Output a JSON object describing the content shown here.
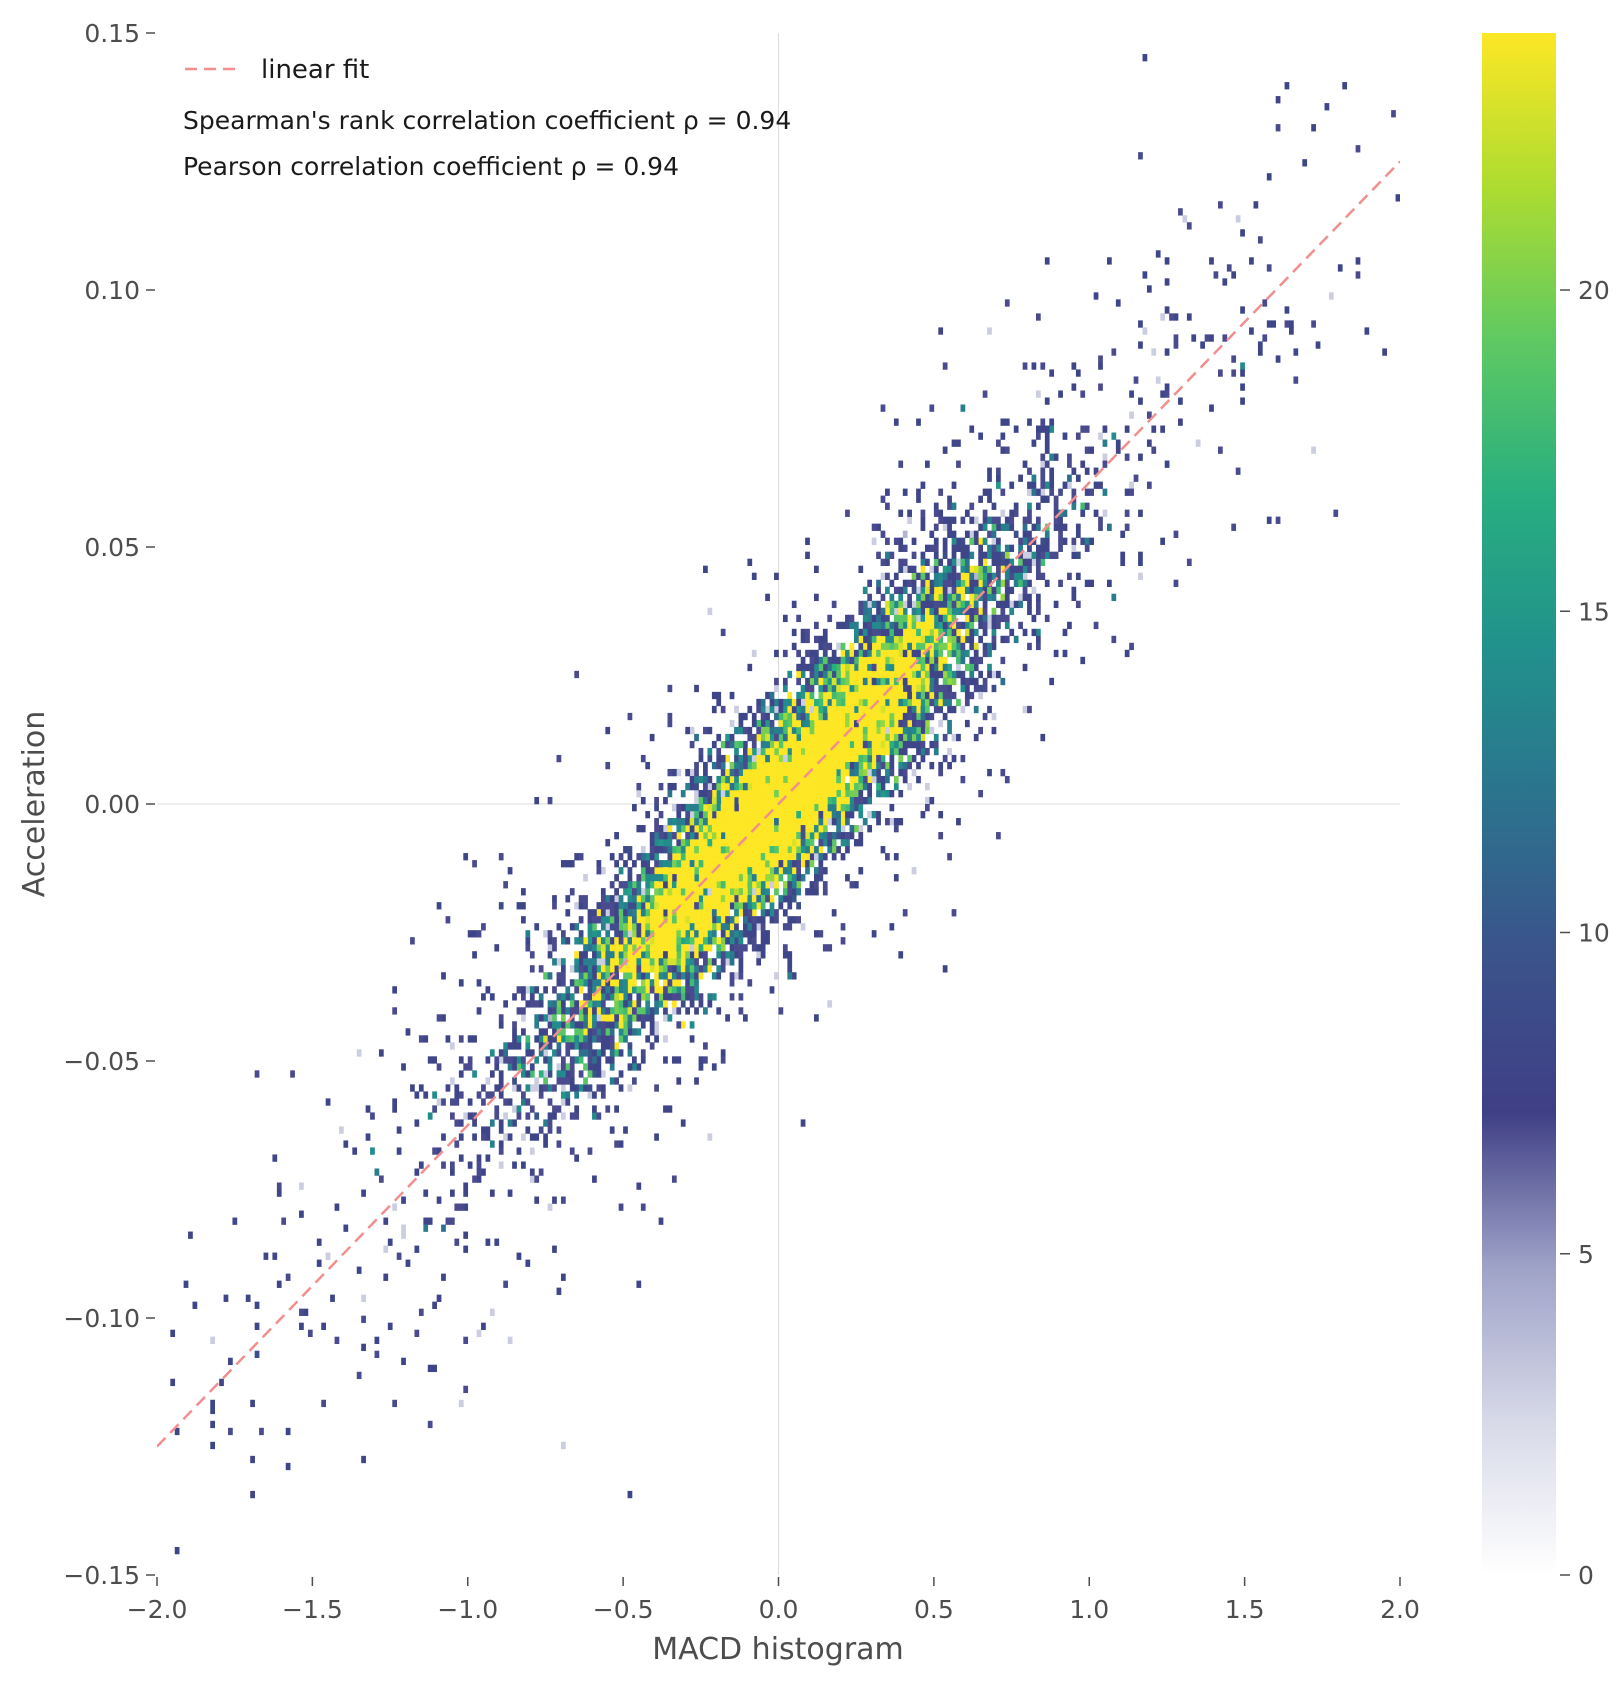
{
  "chart_data": {
    "type": "heatmap",
    "subtype": "2d-histogram scatter with linear fit",
    "xlabel": "MACD histogram",
    "ylabel": "Acceleration",
    "xlim": [
      -2.0,
      2.0
    ],
    "ylim": [
      -0.15,
      0.15
    ],
    "x_ticks": [
      -2.0,
      -1.5,
      -1.0,
      -0.5,
      0.0,
      0.5,
      1.0,
      1.5,
      2.0
    ],
    "x_tick_labels": [
      "−2.0",
      "−1.5",
      "−1.0",
      "−0.5",
      "0.0",
      "0.5",
      "1.0",
      "1.5",
      "2.0"
    ],
    "y_ticks": [
      -0.15,
      -0.1,
      -0.05,
      0.0,
      0.05,
      0.1,
      0.15
    ],
    "y_tick_labels": [
      "−0.15",
      "−0.10",
      "−0.05",
      "0.00",
      "0.05",
      "0.10",
      "0.15"
    ],
    "grid": false,
    "reference_lines": {
      "x": 0.0,
      "y": 0.0,
      "color": "#dddddd"
    },
    "linear_fit": {
      "label": "linear fit",
      "points": [
        [
          -2.0,
          -0.125
        ],
        [
          2.0,
          0.125
        ]
      ],
      "color": "#f28e8e",
      "style": "dashed"
    },
    "legend": {
      "placement": "top-left",
      "entries": [
        "linear fit"
      ]
    },
    "annotations": [
      "Spearman's rank correlation coefficient ρ = 0.94",
      "Pearson correlation coefficient ρ = 0.94"
    ],
    "density": {
      "center": [
        0.0,
        0.0
      ],
      "slope": 0.0625,
      "x_spread": 0.35,
      "residual_spread": 0.009,
      "count_range": [
        0,
        24
      ]
    },
    "colorbar": {
      "range": [
        0,
        24
      ],
      "ticks": [
        0,
        5,
        10,
        15,
        20
      ],
      "tick_labels": [
        "0",
        "5",
        "10",
        "15",
        "20"
      ],
      "colors": [
        "#ffffff",
        "#d7d9e8",
        "#9ea2c7",
        "#3f3f86",
        "#3b528b",
        "#2c728e",
        "#21918c",
        "#28ae80",
        "#5ec962",
        "#addc30",
        "#fde725"
      ]
    }
  }
}
